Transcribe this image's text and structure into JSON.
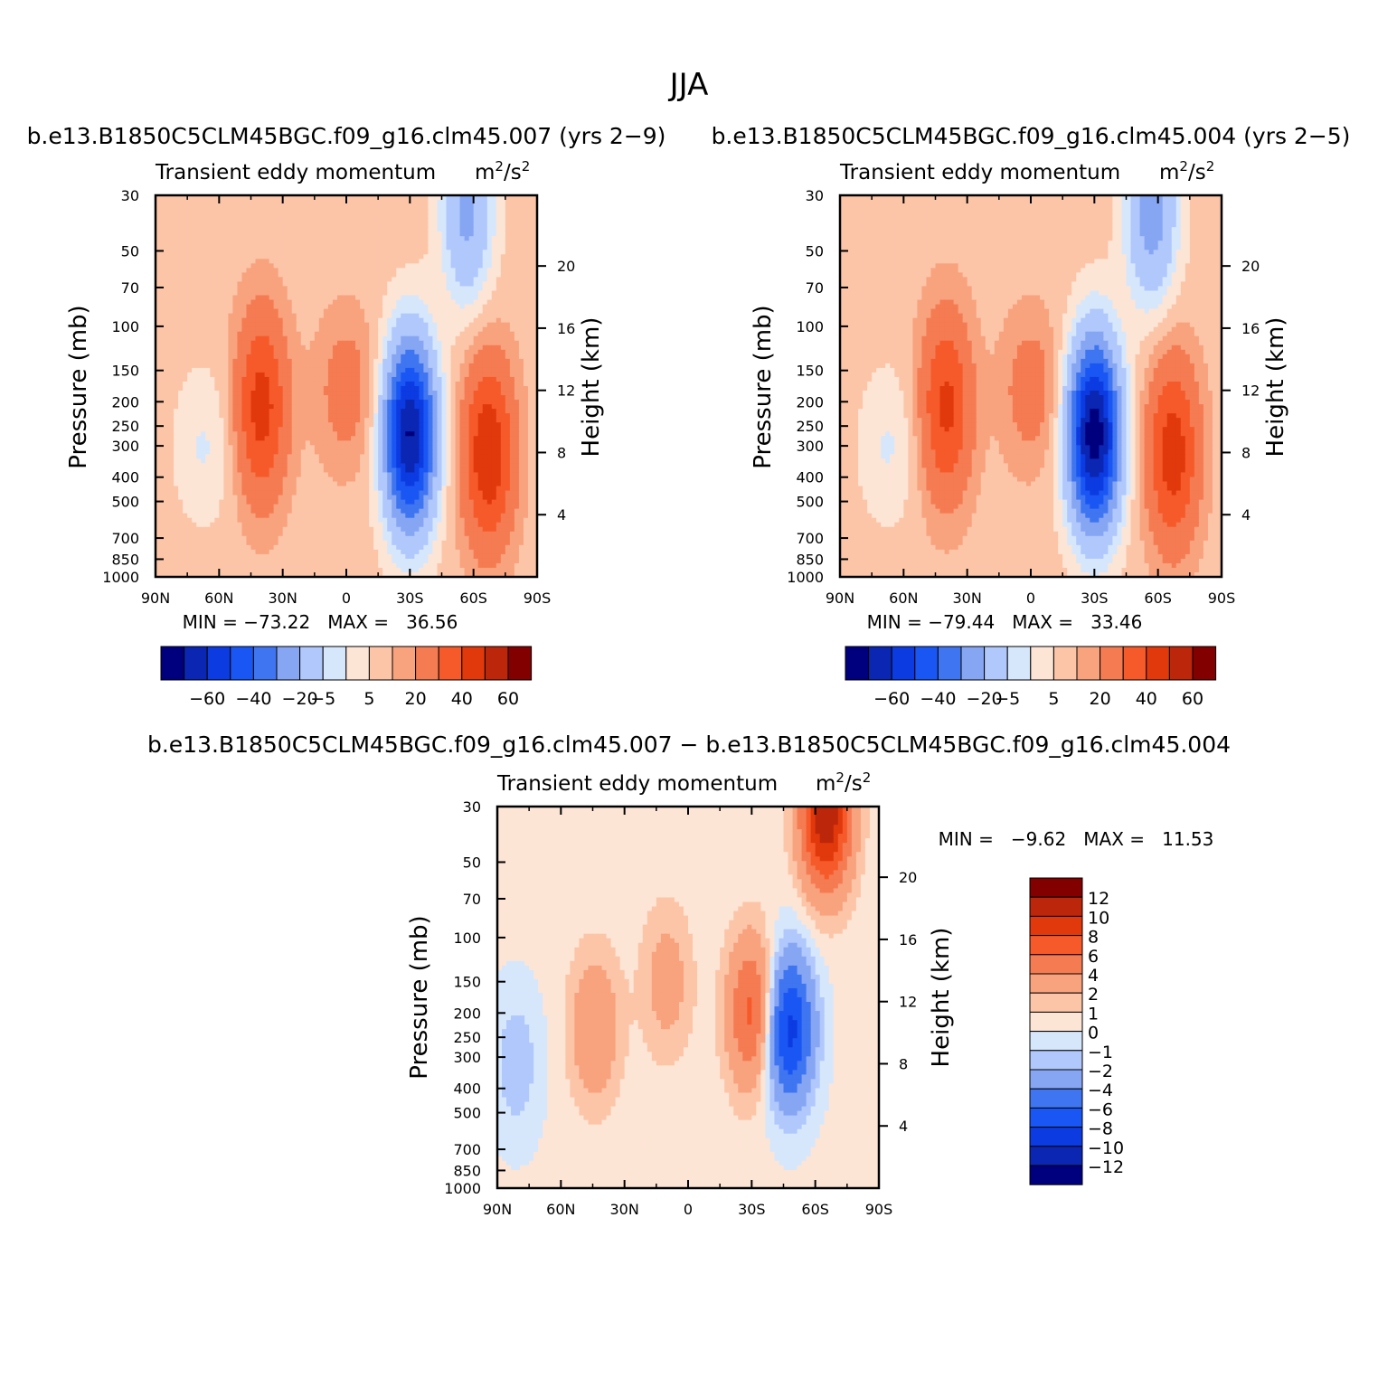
{
  "figure": {
    "season_title": "JJA",
    "colorbar_colors": [
      "#00007e",
      "#0a26b2",
      "#0c3be2",
      "#1a56f3",
      "#3f75f0",
      "#86a6f4",
      "#b0c8fb",
      "#d6e7fc",
      "#fde5d6",
      "#fcc5a8",
      "#f8a27e",
      "#f57b52",
      "#f65a2a",
      "#e1390c",
      "#bc260a",
      "#820000"
    ],
    "panels": [
      {
        "id": "top-left",
        "run_title": "b.e13.B1850C5CLM45BGC.f09_g16.clm45.007 (yrs 2−9)",
        "subtitle": "Transient eddy momentum",
        "units_base": "m",
        "units_mid": "/s",
        "units_sup": "2",
        "y_label": "Pressure (mb)",
        "y2_label": "Height (km)",
        "min_max": "MIN = −73.22   MAX =   36.56",
        "colorbar_labels": [
          "−60",
          "−40",
          "−20",
          "−5",
          "5",
          "20",
          "40",
          "60"
        ]
      },
      {
        "id": "top-right",
        "run_title": "b.e13.B1850C5CLM45BGC.f09_g16.clm45.004 (yrs 2−5)",
        "subtitle": "Transient eddy momentum",
        "units_base": "m",
        "units_mid": "/s",
        "units_sup": "2",
        "y_label": "Pressure (mb)",
        "y2_label": "Height (km)",
        "min_max": "MIN = −79.44   MAX =   33.46",
        "colorbar_labels": [
          "−60",
          "−40",
          "−20",
          "−5",
          "5",
          "20",
          "40",
          "60"
        ]
      },
      {
        "id": "bottom-diff",
        "run_title": "b.e13.B1850C5CLM45BGC.f09_g16.clm45.007 − b.e13.B1850C5CLM45BGC.f09_g16.clm45.004",
        "subtitle": "Transient eddy momentum",
        "units_base": "m",
        "units_mid": "/s",
        "units_sup": "2",
        "y_label": "Pressure (mb)",
        "y2_label": "Height (km)",
        "min_max": "MIN =   −9.62   MAX =   11.53",
        "colorbar_labels": [
          "12",
          "10",
          "8",
          "6",
          "4",
          "2",
          "1",
          "0",
          "−1",
          "−2",
          "−4",
          "−6",
          "−8",
          "−10",
          "−12"
        ]
      }
    ]
  },
  "chart_data": [
    {
      "type": "heatmap",
      "title": "b.e13.B1850C5CLM45BGC.f09_g16.clm45.007 (yrs 2−9)",
      "xlabel": "",
      "ylabel": "Pressure (mb)",
      "y2label": "Height (km)",
      "x_ticks": [
        "90N",
        "60N",
        "30N",
        "0",
        "30S",
        "60S",
        "90S"
      ],
      "x_values": [
        90,
        60,
        30,
        0,
        -30,
        -60,
        -90
      ],
      "y_ticks": [
        30,
        50,
        70,
        100,
        150,
        200,
        250,
        300,
        400,
        500,
        700,
        850,
        1000
      ],
      "y2_ticks": [
        20,
        16,
        12,
        8,
        4
      ],
      "ylim": [
        1000,
        30
      ],
      "y_scale": "log",
      "levels": [
        -70,
        -60,
        -50,
        -40,
        -30,
        -20,
        -10,
        -5,
        0,
        5,
        10,
        20,
        30,
        40,
        50,
        60,
        70
      ],
      "min": -73.22,
      "max": 36.56,
      "features": [
        {
          "lat": -30,
          "p": 270,
          "value": -73.22
        },
        {
          "lat": 40,
          "p": 210,
          "value": 32
        },
        {
          "lat": -67,
          "p": 320,
          "value": 36.56
        },
        {
          "lat": 0,
          "p": 180,
          "value": 12
        },
        {
          "lat": -57,
          "p": 35,
          "value": -25
        },
        {
          "lat": 67,
          "p": 300,
          "value": -8
        }
      ]
    },
    {
      "type": "heatmap",
      "title": "b.e13.B1850C5CLM45BGC.f09_g16.clm45.004 (yrs 2−5)",
      "xlabel": "",
      "ylabel": "Pressure (mb)",
      "y2label": "Height (km)",
      "x_ticks": [
        "90N",
        "60N",
        "30N",
        "0",
        "30S",
        "60S",
        "90S"
      ],
      "x_values": [
        90,
        60,
        30,
        0,
        -30,
        -60,
        -90
      ],
      "y_ticks": [
        30,
        50,
        70,
        100,
        150,
        200,
        250,
        300,
        400,
        500,
        700,
        850,
        1000
      ],
      "y2_ticks": [
        20,
        16,
        12,
        8,
        4
      ],
      "ylim": [
        1000,
        30
      ],
      "y_scale": "log",
      "levels": [
        -70,
        -60,
        -50,
        -40,
        -30,
        -20,
        -10,
        -5,
        0,
        5,
        10,
        20,
        30,
        40,
        50,
        60,
        70
      ],
      "min": -79.44,
      "max": 33.46,
      "features": [
        {
          "lat": -30,
          "p": 270,
          "value": -79.44
        },
        {
          "lat": 40,
          "p": 210,
          "value": 30
        },
        {
          "lat": -67,
          "p": 320,
          "value": 33.46
        },
        {
          "lat": 0,
          "p": 180,
          "value": 12
        },
        {
          "lat": -57,
          "p": 35,
          "value": -28
        },
        {
          "lat": 67,
          "p": 300,
          "value": -8
        }
      ]
    },
    {
      "type": "heatmap",
      "title": "b.e13.B1850C5CLM45BGC.f09_g16.clm45.007 − b.e13.B1850C5CLM45BGC.f09_g16.clm45.004",
      "xlabel": "",
      "ylabel": "Pressure (mb)",
      "y2label": "Height (km)",
      "x_ticks": [
        "90N",
        "60N",
        "30N",
        "0",
        "30S",
        "60S",
        "90S"
      ],
      "x_values": [
        90,
        60,
        30,
        0,
        -30,
        -60,
        -90
      ],
      "y_ticks": [
        30,
        50,
        70,
        100,
        150,
        200,
        250,
        300,
        400,
        500,
        700,
        850,
        1000
      ],
      "y2_ticks": [
        20,
        16,
        12,
        8,
        4
      ],
      "ylim": [
        1000,
        30
      ],
      "y_scale": "log",
      "levels": [
        -12,
        -10,
        -8,
        -6,
        -4,
        -2,
        -1,
        0,
        1,
        2,
        4,
        6,
        8,
        10,
        12
      ],
      "min": -9.62,
      "max": 11.53,
      "features": [
        {
          "lat": -65,
          "p": 32,
          "value": 11.53
        },
        {
          "lat": -47,
          "p": 230,
          "value": -9.62
        },
        {
          "lat": -31,
          "p": 200,
          "value": 7
        },
        {
          "lat": 44,
          "p": 230,
          "value": 3.5
        },
        {
          "lat": 10,
          "p": 150,
          "value": 2.5
        },
        {
          "lat": 81,
          "p": 320,
          "value": -2
        }
      ]
    }
  ]
}
